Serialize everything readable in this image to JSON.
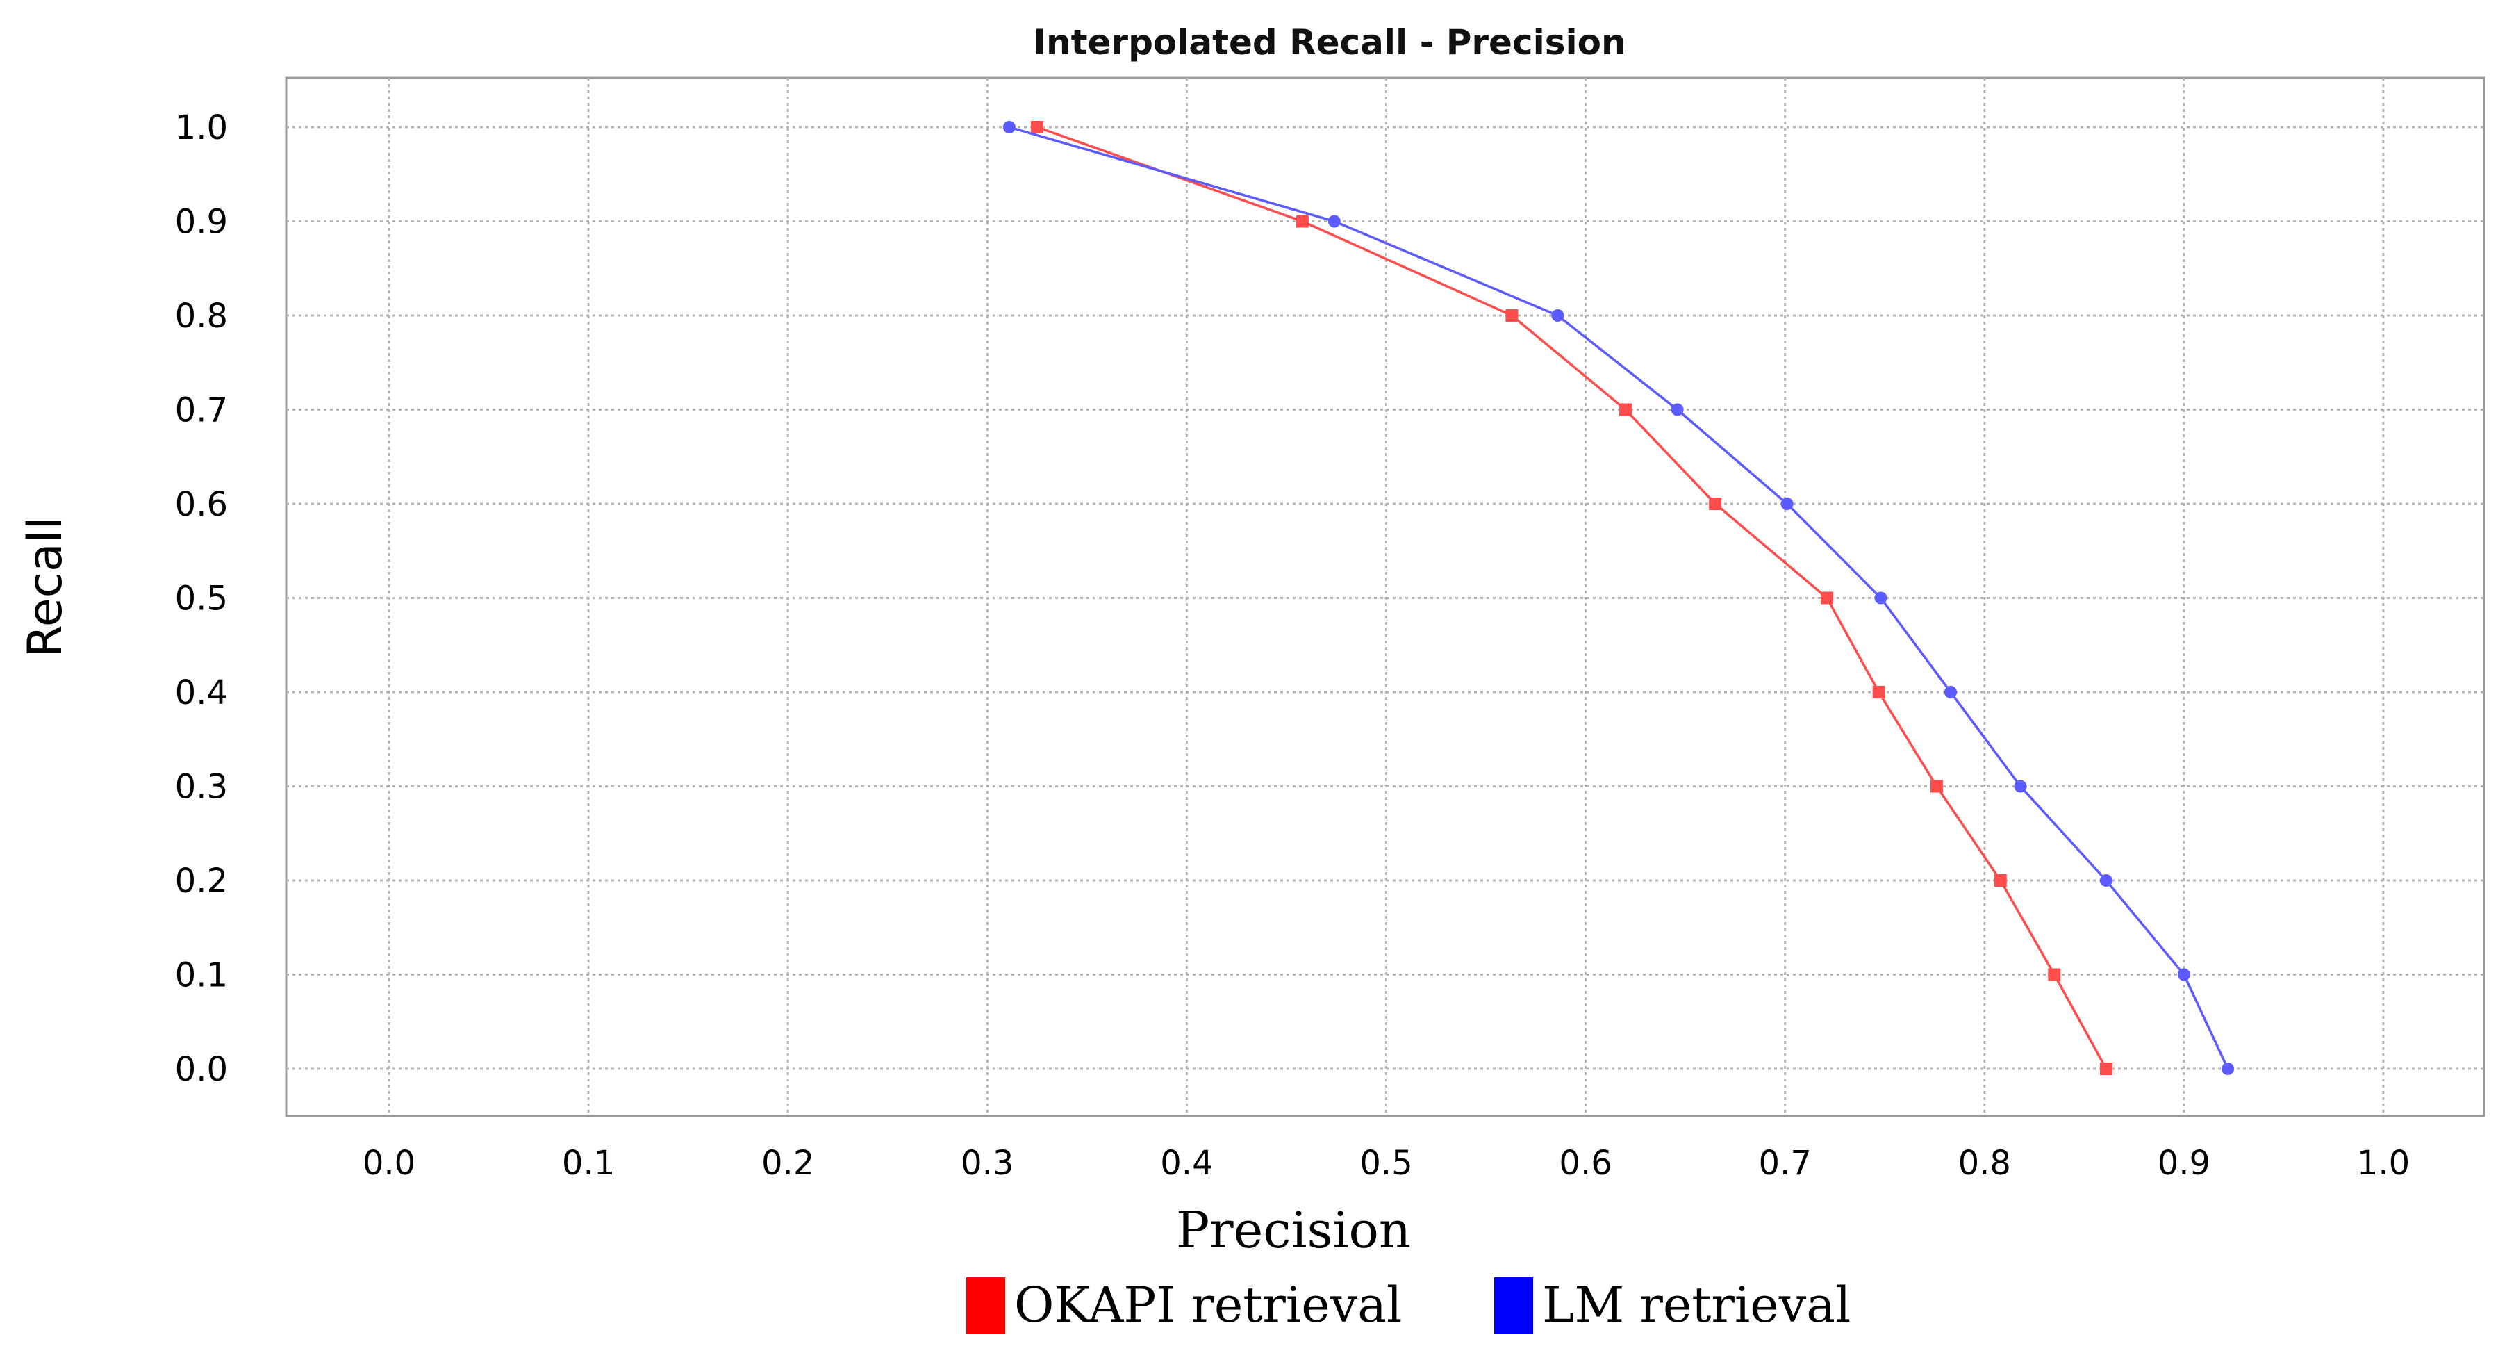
{
  "chart_data": {
    "type": "line",
    "title": "Interpolated Recall - Precision",
    "xlabel": "Precision",
    "ylabel": "Recall",
    "xlim": [
      -0.05,
      1.05
    ],
    "ylim": [
      -0.05,
      1.05
    ],
    "x_ticks": [
      "0.0",
      "0.1",
      "0.2",
      "0.3",
      "0.4",
      "0.5",
      "0.6",
      "0.7",
      "0.8",
      "0.9",
      "1.0"
    ],
    "y_ticks": [
      "0.0",
      "0.1",
      "0.2",
      "0.3",
      "0.4",
      "0.5",
      "0.6",
      "0.7",
      "0.8",
      "0.9",
      "1.0"
    ],
    "grid": true,
    "legend_position": "bottom",
    "series": [
      {
        "name": "OKAPI retrieval",
        "color": "#ff4d4d",
        "marker": "square",
        "x": [
          0.861,
          0.835,
          0.808,
          0.776,
          0.747,
          0.721,
          0.665,
          0.62,
          0.563,
          0.458,
          0.325
        ],
        "y": [
          0.0,
          0.1,
          0.2,
          0.3,
          0.4,
          0.5,
          0.6,
          0.7,
          0.8,
          0.9,
          1.0
        ]
      },
      {
        "name": "LM retrieval",
        "color": "#5b5bff",
        "marker": "circle",
        "x": [
          0.922,
          0.9,
          0.861,
          0.818,
          0.783,
          0.748,
          0.701,
          0.646,
          0.586,
          0.474,
          0.311
        ],
        "y": [
          0.0,
          0.1,
          0.2,
          0.3,
          0.4,
          0.5,
          0.6,
          0.7,
          0.8,
          0.9,
          1.0
        ]
      }
    ]
  }
}
